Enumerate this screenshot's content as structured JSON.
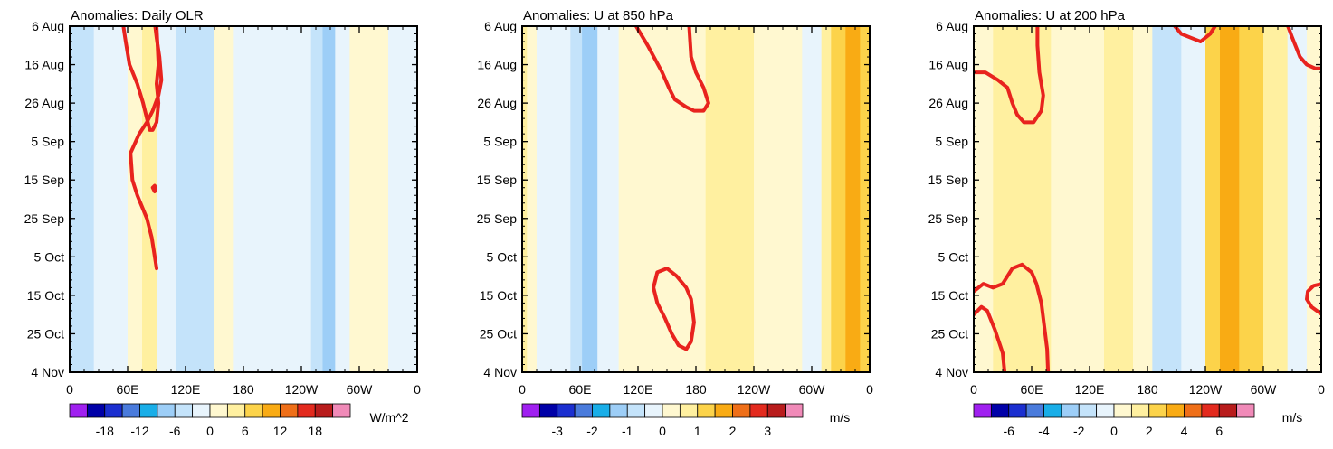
{
  "chart_data": [
    {
      "type": "heatmap",
      "title": "Anomalies: Daily OLR",
      "units": "W/m^2",
      "y_tick_labels": [
        "6 Aug",
        "16 Aug",
        "26 Aug",
        "5 Sep",
        "15 Sep",
        "25 Sep",
        "5 Oct",
        "15 Oct",
        "25 Oct",
        "4 Nov"
      ],
      "x_tick_labels": [
        "0",
        "60E",
        "120E",
        "180",
        "120W",
        "60W",
        "0"
      ],
      "x_range_deg": [
        0,
        360
      ],
      "y_range_days": [
        0,
        90
      ],
      "colorbar_labels": [
        "-18",
        "-12",
        "-6",
        "0",
        "6",
        "12",
        "18"
      ],
      "colorbar_levels": [
        -21,
        -18,
        -15,
        -12,
        -9,
        -6,
        -3,
        0,
        3,
        6,
        9,
        12,
        15,
        18,
        21
      ],
      "bands": [
        {
          "lon0": 0,
          "lon1": 10,
          "value": -3.5
        },
        {
          "lon0": 10,
          "lon1": 25,
          "value": -4.2
        },
        {
          "lon0": 25,
          "lon1": 40,
          "value": -2.0
        },
        {
          "lon0": 40,
          "lon1": 60,
          "value": -1.5
        },
        {
          "lon0": 60,
          "lon1": 75,
          "value": 0.5
        },
        {
          "lon0": 75,
          "lon1": 90,
          "value": 3.5
        },
        {
          "lon0": 90,
          "lon1": 110,
          "value": -1.8
        },
        {
          "lon0": 110,
          "lon1": 135,
          "value": -3.0
        },
        {
          "lon0": 135,
          "lon1": 150,
          "value": -5.5
        },
        {
          "lon0": 150,
          "lon1": 170,
          "value": 1.2
        },
        {
          "lon0": 170,
          "lon1": 200,
          "value": -1.5
        },
        {
          "lon0": 200,
          "lon1": 250,
          "value": -1.8
        },
        {
          "lon0": 250,
          "lon1": 262,
          "value": -4.5
        },
        {
          "lon0": 262,
          "lon1": 275,
          "value": -6.5
        },
        {
          "lon0": 275,
          "lon1": 290,
          "value": -2.0
        },
        {
          "lon0": 290,
          "lon1": 330,
          "value": 1.0
        },
        {
          "lon0": 330,
          "lon1": 360,
          "value": -1.5
        }
      ],
      "contour_lon_day": [
        [
          [
            55,
            -1
          ],
          [
            58,
            4
          ],
          [
            62,
            10
          ],
          [
            70,
            15
          ],
          [
            76,
            20
          ],
          [
            80,
            24
          ],
          [
            83,
            27
          ],
          [
            86,
            27
          ],
          [
            90,
            25
          ],
          [
            92,
            20
          ],
          [
            90,
            15
          ],
          [
            92,
            10
          ],
          [
            91,
            5
          ],
          [
            90,
            0
          ]
        ],
        [
          [
            90,
            63
          ],
          [
            85,
            55
          ],
          [
            80,
            50
          ],
          [
            70,
            44
          ],
          [
            65,
            40
          ],
          [
            63,
            33
          ],
          [
            72,
            28
          ],
          [
            80,
            25
          ],
          [
            86,
            22
          ],
          [
            92,
            18
          ],
          [
            95,
            14
          ],
          [
            93,
            8
          ],
          [
            90,
            3
          ],
          [
            88,
            -1
          ]
        ],
        [
          [
            88,
            41.5
          ],
          [
            86,
            42
          ],
          [
            88,
            43
          ],
          [
            89,
            42
          ]
        ]
      ]
    },
    {
      "type": "heatmap",
      "title": "Anomalies: U at 850 hPa",
      "units": "m/s",
      "y_tick_labels": [
        "6 Aug",
        "16 Aug",
        "26 Aug",
        "5 Sep",
        "15 Sep",
        "25 Sep",
        "5 Oct",
        "15 Oct",
        "25 Oct",
        "4 Nov"
      ],
      "x_tick_labels": [
        "0",
        "60E",
        "120E",
        "180",
        "120W",
        "60W",
        "0"
      ],
      "x_range_deg": [
        0,
        360
      ],
      "y_range_days": [
        0,
        90
      ],
      "colorbar_labels": [
        "-3",
        "-2",
        "-1",
        "0",
        "1",
        "2",
        "3"
      ],
      "colorbar_levels": [
        -3.5,
        -3,
        -2.5,
        -2,
        -1.5,
        -1,
        -0.5,
        0,
        0.5,
        1,
        1.5,
        2,
        2.5,
        3,
        3.5
      ],
      "bands": [
        {
          "lon0": 0,
          "lon1": 5,
          "value": 0.9
        },
        {
          "lon0": 5,
          "lon1": 15,
          "value": 0.3
        },
        {
          "lon0": 15,
          "lon1": 50,
          "value": -0.35
        },
        {
          "lon0": 50,
          "lon1": 62,
          "value": -0.7
        },
        {
          "lon0": 62,
          "lon1": 78,
          "value": -1.2
        },
        {
          "lon0": 78,
          "lon1": 100,
          "value": -0.3
        },
        {
          "lon0": 100,
          "lon1": 160,
          "value": 0.3
        },
        {
          "lon0": 160,
          "lon1": 190,
          "value": 0.2
        },
        {
          "lon0": 190,
          "lon1": 240,
          "value": 0.7
        },
        {
          "lon0": 240,
          "lon1": 255,
          "value": 0.3
        },
        {
          "lon0": 255,
          "lon1": 290,
          "value": 0.2
        },
        {
          "lon0": 290,
          "lon1": 310,
          "value": -0.3
        },
        {
          "lon0": 310,
          "lon1": 320,
          "value": 0.7
        },
        {
          "lon0": 320,
          "lon1": 335,
          "value": 1.4
        },
        {
          "lon0": 335,
          "lon1": 350,
          "value": 1.8
        },
        {
          "lon0": 350,
          "lon1": 360,
          "value": 1.2
        }
      ],
      "contour_lon_day": [
        [
          [
            118,
            0
          ],
          [
            130,
            5
          ],
          [
            145,
            12
          ],
          [
            152,
            16
          ],
          [
            158,
            19
          ],
          [
            170,
            21
          ],
          [
            178,
            22
          ],
          [
            188,
            22
          ],
          [
            193,
            20
          ],
          [
            188,
            16
          ],
          [
            180,
            12
          ],
          [
            175,
            8
          ],
          [
            173,
            0
          ]
        ],
        [
          [
            140,
            72
          ],
          [
            148,
            76
          ],
          [
            155,
            80
          ],
          [
            162,
            83
          ],
          [
            170,
            84
          ],
          [
            175,
            82
          ],
          [
            178,
            77
          ],
          [
            175,
            71
          ],
          [
            170,
            68
          ],
          [
            160,
            65
          ],
          [
            150,
            63
          ],
          [
            140,
            64
          ],
          [
            136,
            68
          ],
          [
            140,
            72
          ]
        ]
      ]
    },
    {
      "type": "heatmap",
      "title": "Anomalies: U at 200 hPa",
      "units": "m/s",
      "y_tick_labels": [
        "6 Aug",
        "16 Aug",
        "26 Aug",
        "5 Sep",
        "15 Sep",
        "25 Sep",
        "5 Oct",
        "15 Oct",
        "25 Oct",
        "4 Nov"
      ],
      "x_tick_labels": [
        "0",
        "60E",
        "120E",
        "180",
        "120W",
        "60W",
        "0"
      ],
      "x_range_deg": [
        0,
        360
      ],
      "y_range_days": [
        0,
        90
      ],
      "colorbar_labels": [
        "-6",
        "-4",
        "-2",
        "0",
        "2",
        "4",
        "6"
      ],
      "colorbar_levels": [
        -7,
        -6,
        -5,
        -4,
        -3,
        -2,
        -1,
        0,
        1,
        2,
        3,
        4,
        5,
        6,
        7
      ],
      "bands": [
        {
          "lon0": 0,
          "lon1": 20,
          "value": 0.6
        },
        {
          "lon0": 20,
          "lon1": 60,
          "value": 1.4
        },
        {
          "lon0": 60,
          "lon1": 80,
          "value": 1.6
        },
        {
          "lon0": 80,
          "lon1": 110,
          "value": 0.6
        },
        {
          "lon0": 110,
          "lon1": 135,
          "value": 0.3
        },
        {
          "lon0": 135,
          "lon1": 165,
          "value": 1.3
        },
        {
          "lon0": 165,
          "lon1": 185,
          "value": 0.3
        },
        {
          "lon0": 185,
          "lon1": 215,
          "value": -1.0
        },
        {
          "lon0": 215,
          "lon1": 240,
          "value": -0.3
        },
        {
          "lon0": 240,
          "lon1": 255,
          "value": 2.5
        },
        {
          "lon0": 255,
          "lon1": 275,
          "value": 3.3
        },
        {
          "lon0": 275,
          "lon1": 300,
          "value": 2.5
        },
        {
          "lon0": 300,
          "lon1": 325,
          "value": 1.4
        },
        {
          "lon0": 325,
          "lon1": 345,
          "value": -0.4
        },
        {
          "lon0": 345,
          "lon1": 360,
          "value": 0.4
        }
      ],
      "contour_lon_day": [
        [
          [
            0,
            12
          ],
          [
            12,
            12
          ],
          [
            25,
            14
          ],
          [
            35,
            16
          ],
          [
            40,
            20
          ],
          [
            45,
            23
          ],
          [
            52,
            25
          ],
          [
            62,
            25
          ],
          [
            70,
            22
          ],
          [
            72,
            18
          ],
          [
            68,
            12
          ],
          [
            66,
            5
          ],
          [
            66,
            0
          ]
        ],
        [
          [
            0,
            69
          ],
          [
            10,
            67
          ],
          [
            20,
            68
          ],
          [
            30,
            67
          ],
          [
            40,
            63
          ],
          [
            50,
            62
          ],
          [
            60,
            64
          ],
          [
            65,
            67
          ],
          [
            70,
            72
          ],
          [
            73,
            78
          ],
          [
            76,
            84
          ],
          [
            77,
            90
          ]
        ],
        [
          [
            0,
            75
          ],
          [
            8,
            73
          ],
          [
            14,
            74
          ],
          [
            22,
            79
          ],
          [
            30,
            85
          ],
          [
            32,
            90
          ]
        ],
        [
          [
            205,
            -1
          ],
          [
            215,
            2
          ],
          [
            225,
            3
          ],
          [
            235,
            4
          ],
          [
            245,
            2
          ],
          [
            250,
            0
          ],
          [
            252,
            -1
          ]
        ],
        [
          [
            324,
            -1
          ],
          [
            330,
            3
          ],
          [
            338,
            8
          ],
          [
            345,
            10
          ],
          [
            354,
            11
          ],
          [
            361,
            11
          ]
        ],
        [
          [
            361,
            67
          ],
          [
            352,
            67.5
          ],
          [
            346,
            69
          ],
          [
            345,
            71
          ],
          [
            350,
            73
          ],
          [
            361,
            75
          ]
        ]
      ]
    }
  ]
}
